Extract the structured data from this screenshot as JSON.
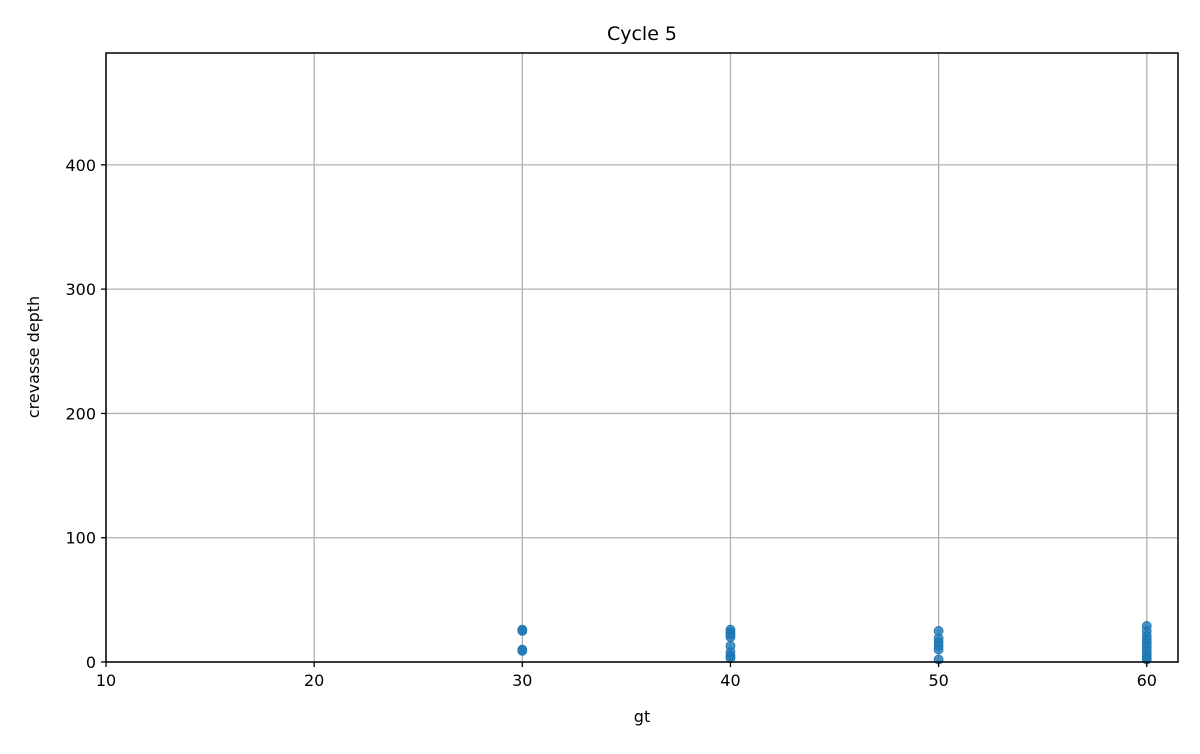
{
  "chart_data": {
    "type": "scatter",
    "title": "Cycle 5",
    "xlabel": "gt",
    "ylabel": "crevasse depth",
    "xlim": [
      10,
      61.5
    ],
    "ylim": [
      0,
      490
    ],
    "x_ticks": [
      10,
      20,
      30,
      40,
      50,
      60
    ],
    "y_ticks": [
      0,
      100,
      200,
      300,
      400
    ],
    "grid": true,
    "marker_color": "#1f77b4",
    "series": [
      {
        "points": [
          {
            "x": 30,
            "y": 26
          },
          {
            "x": 30,
            "y": 25
          },
          {
            "x": 30,
            "y": 10
          },
          {
            "x": 30,
            "y": 9
          },
          {
            "x": 40,
            "y": 26
          },
          {
            "x": 40,
            "y": 24
          },
          {
            "x": 40,
            "y": 22
          },
          {
            "x": 40,
            "y": 20
          },
          {
            "x": 40,
            "y": 13
          },
          {
            "x": 40,
            "y": 8
          },
          {
            "x": 40,
            "y": 5
          },
          {
            "x": 40,
            "y": 3
          },
          {
            "x": 50,
            "y": 25
          },
          {
            "x": 50,
            "y": 19
          },
          {
            "x": 50,
            "y": 16
          },
          {
            "x": 50,
            "y": 13
          },
          {
            "x": 50,
            "y": 10
          },
          {
            "x": 50,
            "y": 2
          },
          {
            "x": 60,
            "y": 29
          },
          {
            "x": 60,
            "y": 25
          },
          {
            "x": 60,
            "y": 21
          },
          {
            "x": 60,
            "y": 18
          },
          {
            "x": 60,
            "y": 15
          },
          {
            "x": 60,
            "y": 12
          },
          {
            "x": 60,
            "y": 9
          },
          {
            "x": 60,
            "y": 6
          },
          {
            "x": 60,
            "y": 4
          },
          {
            "x": 60,
            "y": 2
          }
        ]
      }
    ]
  }
}
